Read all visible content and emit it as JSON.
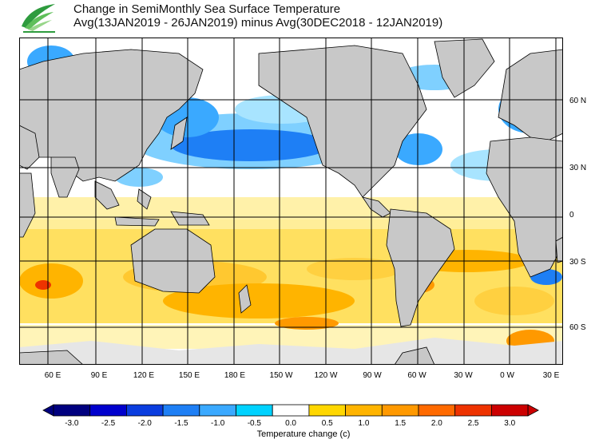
{
  "header": {
    "title_line1": "Change in SemiMonthly Sea Surface Temperature",
    "title_line2": "Avg(13JAN2019 - 26JAN2019) minus Avg(30DEC2018 - 12JAN2019)"
  },
  "map": {
    "lat_labels": [
      "60 N",
      "30 N",
      "0",
      "30 S",
      "60 S"
    ],
    "lon_labels": [
      "60 E",
      "90 E",
      "120 E",
      "150 E",
      "180 E",
      "150 W",
      "120 W",
      "90 W",
      "60 W",
      "30 W",
      "0 W",
      "30 E"
    ]
  },
  "colorbar": {
    "tick_labels": [
      "-3.0",
      "-2.5",
      "-2.0",
      "-1.5",
      "-1.0",
      "-0.5",
      "0.0",
      "0.5",
      "1.0",
      "1.5",
      "2.0",
      "2.5",
      "3.0"
    ],
    "colors": [
      "#00007f",
      "#0000cd",
      "#0a3ddf",
      "#1e7ff5",
      "#3aa9ff",
      "#00d2ff",
      "#ffffff",
      "#ffd700",
      "#ffb400",
      "#ff9900",
      "#ff6a00",
      "#ee3300",
      "#cc0000"
    ],
    "label": "Temperature change  (c)"
  },
  "colors": {
    "land": "#c8c8c8",
    "ice": "#e6e6e6",
    "outline": "#000000"
  }
}
